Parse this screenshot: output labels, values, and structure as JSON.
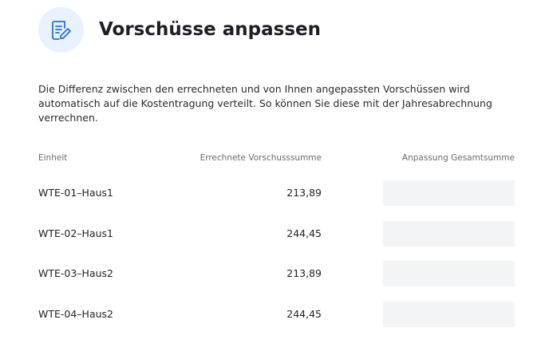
{
  "header": {
    "title": "Vorschüsse anpassen"
  },
  "description": "Die Differenz zwischen den errechneten und von Ihnen angepassten Vorschüssen wird automatisch auf die Kostentragung verteilt. So können Sie diese mit der Jahresabrechnung verrechnen.",
  "table": {
    "columns": [
      "Einheit",
      "Errechnete Vorschusssumme",
      "Anpassung Gesamtsumme"
    ],
    "rows": [
      [
        "WTE-01–Haus1",
        "213,89"
      ],
      [
        "WTE-02–Haus1",
        "244,45"
      ],
      [
        "WTE-03–Haus2",
        "213,89"
      ],
      [
        "WTE-04–Haus2",
        "244,45"
      ]
    ]
  }
}
